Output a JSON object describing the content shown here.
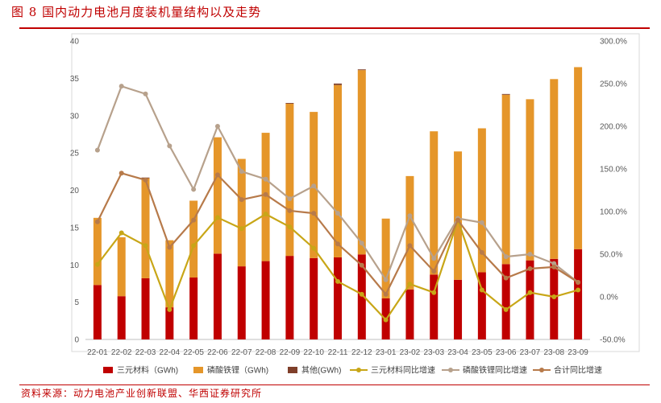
{
  "figure": {
    "title": "图 8 国内动力电池月度装机量结构以及走势",
    "source": "资料来源：动力电池产业创新联盟、华西证券研究所"
  },
  "colors": {
    "ternary": "#c00000",
    "lfp": "#e5962a",
    "other": "#7f3f2a",
    "ternary_yoy": "#c8a617",
    "lfp_yoy": "#b7a18c",
    "total_yoy": "#b77a4a",
    "accent": "#c00000"
  },
  "chart_data": {
    "type": "bar",
    "categories": [
      "22-01",
      "22-02",
      "22-03",
      "22-04",
      "22-05",
      "22-06",
      "22-07",
      "22-08",
      "22-09",
      "22-10",
      "22-11",
      "22-12",
      "23-01",
      "23-02",
      "23-03",
      "23-04",
      "23-05",
      "23-06",
      "23-07",
      "23-08",
      "23-09"
    ],
    "left_axis": {
      "ylim": [
        0,
        40
      ],
      "ticks": [
        "0",
        "5",
        "10",
        "15",
        "20",
        "25",
        "30",
        "35",
        "40"
      ]
    },
    "right_axis": {
      "ylim": [
        -50,
        300
      ],
      "ticks": [
        "-50.0%",
        "0.0%",
        "50.0%",
        "100.0%",
        "150.0%",
        "200.0%",
        "250.0%",
        "300.0%"
      ]
    },
    "stacked": true,
    "series": [
      {
        "name": "三元材料（GWh)",
        "kind": "bar",
        "axis": "left",
        "values": [
          7.3,
          5.8,
          8.2,
          4.3,
          8.3,
          11.5,
          9.8,
          10.5,
          11.2,
          10.9,
          11.0,
          11.4,
          5.5,
          6.7,
          8.7,
          8.0,
          9.0,
          10.1,
          10.6,
          10.8,
          12.1
        ]
      },
      {
        "name": "磷酸铁锂（GWh)",
        "kind": "bar",
        "axis": "left",
        "values": [
          9.0,
          7.9,
          13.4,
          9.0,
          10.3,
          15.6,
          14.4,
          17.2,
          20.4,
          19.6,
          23.1,
          24.7,
          10.7,
          15.2,
          19.2,
          17.2,
          19.3,
          22.7,
          21.6,
          24.1,
          24.4
        ]
      },
      {
        "name": "其他(GWh)",
        "kind": "bar",
        "axis": "left",
        "values": [
          0.0,
          0.0,
          0.1,
          0.0,
          0.0,
          0.0,
          0.0,
          0.0,
          0.1,
          0.0,
          0.2,
          0.1,
          0.0,
          0.0,
          0.0,
          0.0,
          0.0,
          0.1,
          0.0,
          0.0,
          0.0
        ]
      },
      {
        "name": "三元材料同比增速",
        "kind": "line",
        "axis": "right",
        "values": [
          38,
          75,
          60,
          -15,
          60,
          93,
          80,
          97,
          82,
          57,
          18,
          3,
          -27,
          15,
          5,
          90,
          8,
          -15,
          5,
          0,
          8
        ]
      },
      {
        "name": "磷酸铁锂同比增速",
        "kind": "line",
        "axis": "right",
        "values": [
          172,
          247,
          238,
          177,
          126,
          200,
          147,
          138,
          115,
          130,
          98,
          63,
          20,
          95,
          45,
          92,
          87,
          47,
          50,
          39,
          17
        ]
      },
      {
        "name": "合计同比增速",
        "kind": "line",
        "axis": "right",
        "values": [
          88,
          145,
          137,
          58,
          90,
          143,
          114,
          120,
          101,
          98,
          62,
          37,
          3,
          60,
          30,
          90,
          52,
          22,
          33,
          35,
          17
        ]
      }
    ],
    "legend_position": "bottom",
    "grid": false
  }
}
